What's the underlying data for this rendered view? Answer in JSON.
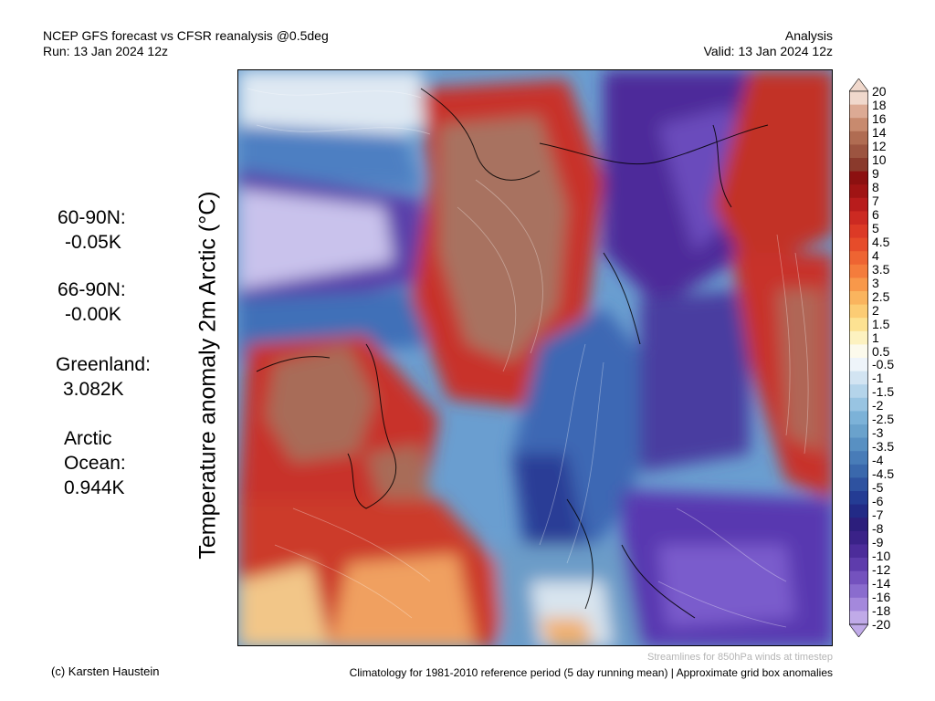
{
  "header": {
    "title_line1": "NCEP GFS forecast vs CFSR reanalysis @0.5deg",
    "title_line2": "Run: 13 Jan 2024 12z",
    "right_line1": "Analysis",
    "right_line2": "Valid: 13 Jan 2024 12z"
  },
  "axis_label": "Temperature anomaly 2m Arctic (°C)",
  "stats": [
    {
      "label": "60-90N:",
      "value": "-0.05K"
    },
    {
      "label": "66-90N:",
      "value": "-0.00K"
    },
    {
      "label": "Greenland:",
      "value": "3.082K"
    },
    {
      "label": "Arctic",
      "label2": "Ocean:",
      "value": "0.944K"
    }
  ],
  "colorbar": {
    "labels": [
      "20",
      "18",
      "16",
      "14",
      "12",
      "10",
      "9",
      "8",
      "7",
      "6",
      "5",
      "4.5",
      "4",
      "3.5",
      "3",
      "2.5",
      "2",
      "1.5",
      "1",
      "0.5",
      "-0.5",
      "-1",
      "-1.5",
      "-2",
      "-2.5",
      "-3",
      "-3.5",
      "-4",
      "-4.5",
      "-5",
      "-6",
      "-7",
      "-8",
      "-9",
      "-10",
      "-12",
      "-14",
      "-16",
      "-18",
      "-20"
    ],
    "colors": [
      "#f0d8cc",
      "#dcaa94",
      "#c88a6e",
      "#b06c52",
      "#9c5440",
      "#8a3a2c",
      "#8c1010",
      "#a01414",
      "#b81c1c",
      "#cc2a22",
      "#dc3a26",
      "#e64c2a",
      "#ee6432",
      "#f47c3c",
      "#f8984a",
      "#fab45e",
      "#fccc74",
      "#fde292",
      "#fdf2c0",
      "#fcfaec",
      "#eef4fa",
      "#d2e4f2",
      "#b4d4ea",
      "#98c4e2",
      "#7cb2d8",
      "#6aa2cc",
      "#5890c2",
      "#487cb8",
      "#3a68ac",
      "#2e52a0",
      "#243c94",
      "#222a86",
      "#2c1e7c",
      "#3a2288",
      "#4c2c9a",
      "#5e3cac",
      "#7452be",
      "#8a6cce",
      "#a488dc",
      "#c0aae8"
    ]
  },
  "footer": {
    "credit": "(c) Karsten Haustein",
    "streamlines": "Streamlines for 850hPa winds at timestep",
    "climatology": "Climatology for 1981-2010 reference period (5 day running mean) | Approximate grid box anomalies"
  }
}
